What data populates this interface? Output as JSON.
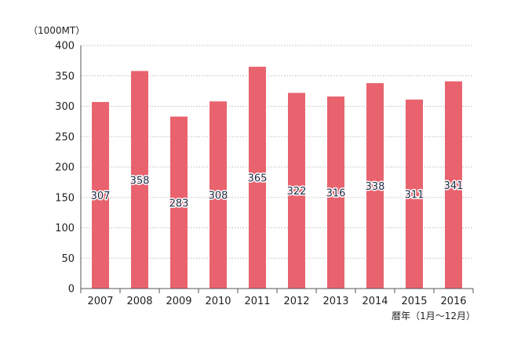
{
  "chart_data": {
    "type": "bar",
    "categories": [
      "2007",
      "2008",
      "2009",
      "2010",
      "2011",
      "2012",
      "2013",
      "2014",
      "2015",
      "2016"
    ],
    "values": [
      307,
      358,
      283,
      308,
      365,
      322,
      316,
      338,
      311,
      341
    ],
    "ylim": [
      0,
      400
    ],
    "yticks": [
      0,
      50,
      100,
      150,
      200,
      250,
      300,
      350,
      400
    ],
    "ylabel": "（1000MT）",
    "xlabel": "暦年（1月〜12月）",
    "grid": true,
    "bar_color": "#e8636e",
    "grid_color": "#bdbdbd",
    "axis_color": "#555555"
  }
}
